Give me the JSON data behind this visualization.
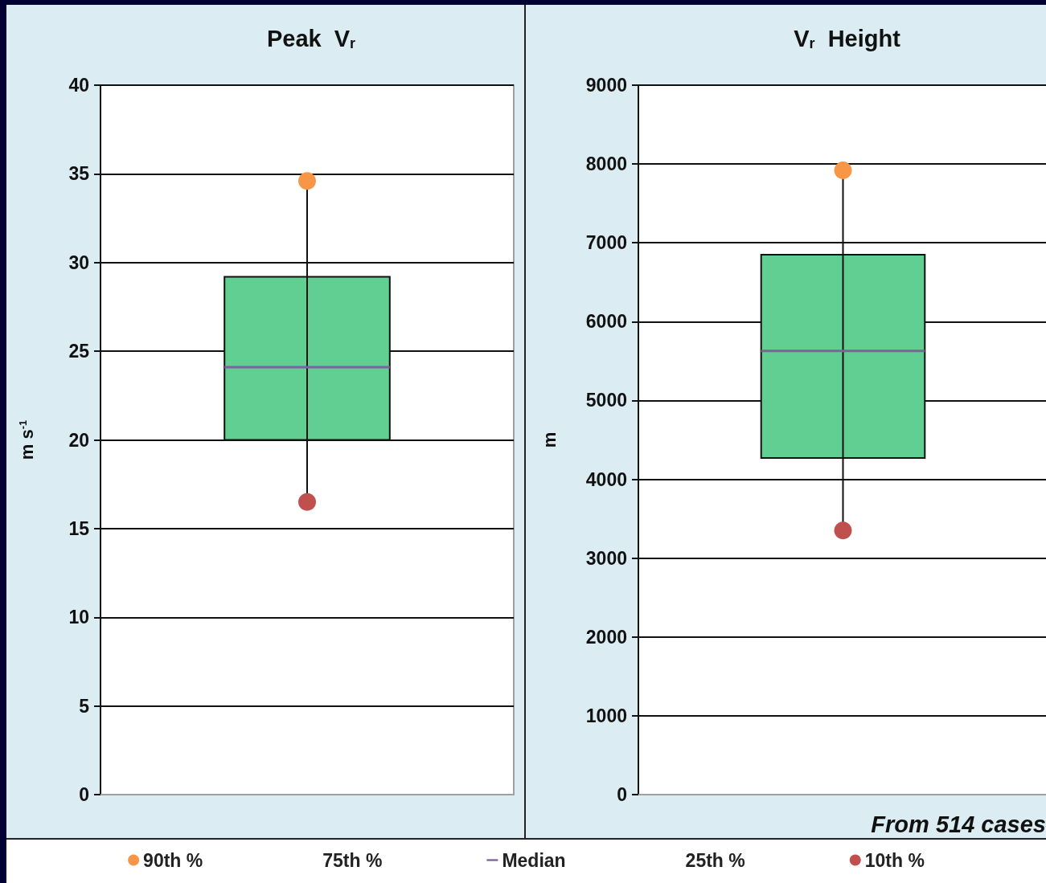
{
  "chart_data": [
    {
      "type": "box",
      "title": "Peak  V$_{r}$",
      "ylabel": "m s$^{-1}$",
      "categories": [
        null
      ],
      "ylim": [
        0,
        40
      ],
      "yticks": [
        0,
        5,
        10,
        15,
        20,
        25,
        30,
        35,
        40
      ],
      "grid": "y",
      "legend": "bottom",
      "series": [
        {
          "type": "box",
          "color": "#61cf91",
          "boxes": [
            {
              "low": 16.5,
              "q1": 20.0,
              "median": 24.1,
              "q3": 29.2,
              "high": 34.6
            }
          ]
        },
        {
          "name": "90th %",
          "type": "scatter",
          "color": "#f79646",
          "values": [
            34.6
          ]
        },
        {
          "name": "75th %",
          "type": "box",
          "values": [
            null
          ]
        },
        {
          "name": "Median",
          "type": "box",
          "color": "#7f60a0",
          "values": [
            null
          ]
        },
        {
          "name": "25th %",
          "type": "box",
          "values": [
            null
          ]
        },
        {
          "name": "10th %",
          "type": "scatter",
          "color": "#c0504d",
          "values": [
            16.5
          ]
        }
      ]
    },
    {
      "type": "box",
      "title": "V$_{r}$  Height",
      "ylabel": "m",
      "categories": [
        null
      ],
      "ylim": [
        0,
        9000
      ],
      "yticks": [
        0,
        1000,
        2000,
        3000,
        4000,
        5000,
        6000,
        7000,
        8000,
        9000
      ],
      "grid": "y",
      "annotations": [
        "From 514 cases"
      ],
      "series": [
        {
          "type": "box",
          "color": "#61cf91",
          "boxes": [
            {
              "low": 3350,
              "q1": 4270,
              "median": 5630,
              "q3": 6850,
              "high": 7920
            }
          ]
        },
        {
          "type": "scatter",
          "color": "#f79646",
          "values": [
            7920
          ]
        },
        {
          "type": "box",
          "color": "#7f60a0",
          "values": [
            null
          ]
        },
        {
          "type": "scatter",
          "color": "#c0504d",
          "values": [
            3350
          ]
        }
      ]
    }
  ]
}
